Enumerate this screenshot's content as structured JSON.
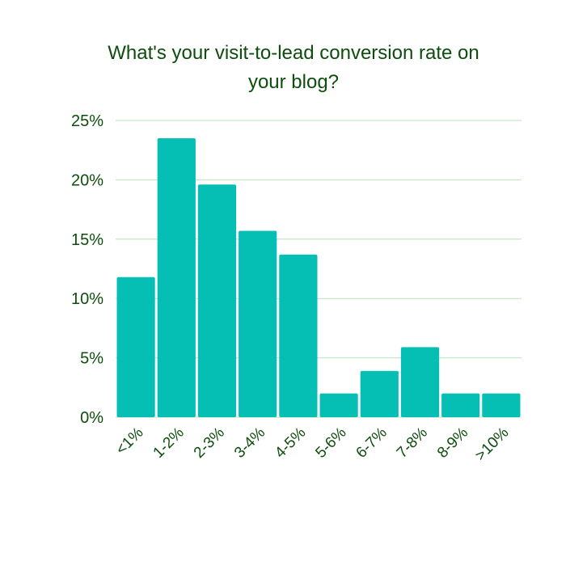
{
  "chart_data": {
    "type": "bar",
    "title_line1": "What's your visit-to-lead conversion rate on",
    "title_line2": "your blog?",
    "categories": [
      "<1%",
      "1-2%",
      "2-3%",
      "3-4%",
      "4-5%",
      "5-6%",
      "6-7%",
      "7-8%",
      "8-9%",
      ">10%"
    ],
    "values": [
      11.8,
      23.5,
      19.6,
      15.7,
      13.7,
      2.0,
      3.9,
      5.9,
      2.0,
      2.0
    ],
    "yticks": [
      "0%",
      "5%",
      "10%",
      "15%",
      "20%",
      "25%"
    ],
    "ylim": [
      0,
      25
    ],
    "grid": true,
    "bar_color": "#05bfb5",
    "grid_color": "#b8e3b8",
    "text_color": "#0d4d0d"
  }
}
